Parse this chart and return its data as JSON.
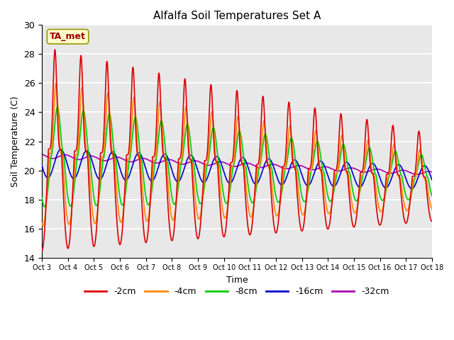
{
  "title": "Alfalfa Soil Temperatures Set A",
  "xlabel": "Time",
  "ylabel": "Soil Temperature (C)",
  "ylim": [
    14,
    30
  ],
  "xlim": [
    0,
    15
  ],
  "x_tick_labels": [
    "Oct 3",
    "Oct 4",
    "Oct 5",
    "Oct 6",
    "Oct 7",
    "Oct 8",
    "Oct 9",
    "Oct 10",
    "Oct 11",
    "Oct 12",
    "Oct 13",
    "Oct 14",
    "Oct 15",
    "Oct 16",
    "Oct 17",
    "Oct 18"
  ],
  "annotation_text": "TA_met",
  "annotation_box_color": "#ffffcc",
  "annotation_text_color": "#990000",
  "line_colors": {
    "-2cm": "#dd0000",
    "-4cm": "#ff8800",
    "-8cm": "#00cc00",
    "-16cm": "#0000cc",
    "-32cm": "#aa00aa"
  },
  "legend_labels": [
    "-2cm",
    "-4cm",
    "-8cm",
    "-16cm",
    "-32cm"
  ],
  "background_color": "#e8e8e8",
  "grid_color": "#ffffff"
}
